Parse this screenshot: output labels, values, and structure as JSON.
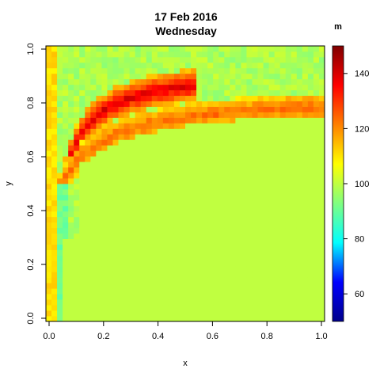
{
  "chart_data": {
    "type": "heatmap",
    "title": "17 Feb 2016",
    "subtitle": "Wednesday",
    "xlabel": "x",
    "ylabel": "y",
    "xlim": [
      0,
      1
    ],
    "ylim": [
      0,
      1
    ],
    "x_ticks": [
      "0.0",
      "0.2",
      "0.4",
      "0.6",
      "0.8",
      "1.0"
    ],
    "y_ticks": [
      "0.0",
      "0.2",
      "0.4",
      "0.6",
      "0.8",
      "1.0"
    ],
    "grid": false,
    "grid_size": [
      50,
      50
    ],
    "colorbar": {
      "unit": "m",
      "range": [
        50,
        150
      ],
      "ticks": [
        "60",
        "80",
        "100",
        "120",
        "140"
      ],
      "colors": [
        "#00008b",
        "#0000ff",
        "#00ffff",
        "#80ff80",
        "#ffff00",
        "#ff7f00",
        "#ff0000",
        "#7f0000"
      ]
    },
    "description_values": {
      "background_level": 100,
      "domain_level": 100,
      "band_level_range": [
        88,
        145
      ]
    }
  }
}
